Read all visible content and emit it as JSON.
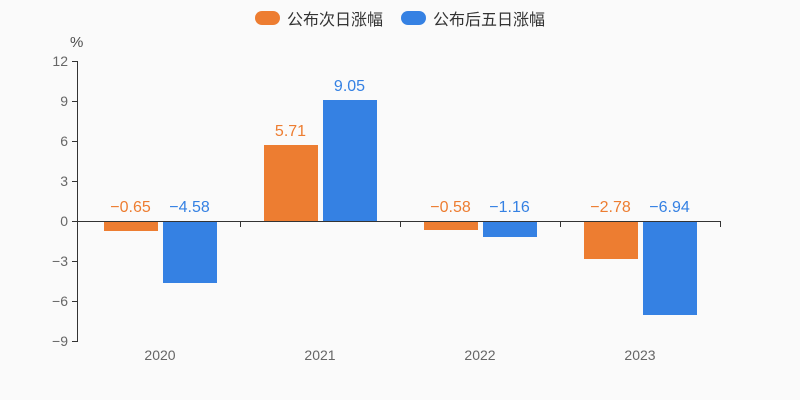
{
  "legend": {
    "items": [
      {
        "label": "公布次日涨幅",
        "color": "#ED7D31"
      },
      {
        "label": "公布后五日涨幅",
        "color": "#3581E3"
      }
    ]
  },
  "chart_data": {
    "type": "bar",
    "title": "",
    "xlabel": "",
    "ylabel": "%",
    "categories": [
      "2020",
      "2021",
      "2022",
      "2023"
    ],
    "series": [
      {
        "name": "公布次日涨幅",
        "color": "#ED7D31",
        "values": [
          -0.65,
          5.71,
          -0.58,
          -2.78
        ],
        "value_labels": [
          "−0.65",
          "5.71",
          "−0.58",
          "−2.78"
        ]
      },
      {
        "name": "公布后五日涨幅",
        "color": "#3581E3",
        "values": [
          -4.58,
          9.05,
          -1.16,
          -6.94
        ],
        "value_labels": [
          "−4.58",
          "9.05",
          "−1.16",
          "−6.94"
        ]
      }
    ],
    "ylim": [
      -9,
      12
    ],
    "ytick_step": 3,
    "yticks": [
      12,
      9,
      6,
      3,
      0,
      -3,
      -6,
      -9
    ],
    "ytick_labels": [
      "12",
      "9",
      "6",
      "3",
      "0",
      "−3",
      "−6",
      "−9"
    ],
    "grid": false,
    "legend_position": "top",
    "axis_color": "#333333",
    "tick_label_color": "#666666",
    "background": "#FAFAFA"
  }
}
